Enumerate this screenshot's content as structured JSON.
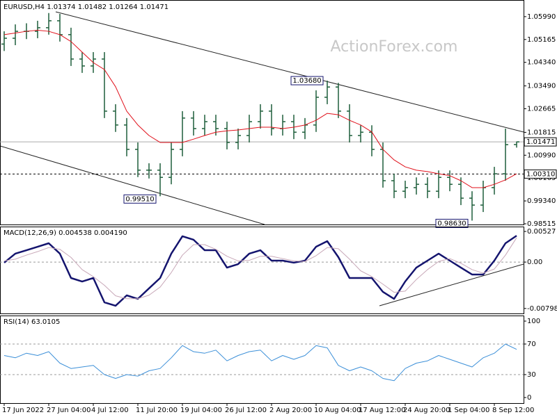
{
  "chart_data": [
    {
      "type": "ohlc",
      "title": "EURUSD,H4  1.01374 1.01482 1.01264 1.01471",
      "watermark": "ActionForex.com",
      "categories": [
        "17 Jun 2022",
        null,
        null,
        null,
        "27 Jun 04:00",
        null,
        null,
        null,
        "4 Jul 12:00",
        null,
        null,
        null,
        "11 Jul 20:00",
        null,
        null,
        null,
        "19 Jul 04:00",
        null,
        null,
        null,
        "26 Jul 12:00",
        null,
        null,
        null,
        "2 Aug 20:00",
        null,
        null,
        null,
        "10 Aug 04:00",
        null,
        null,
        null,
        "17 Aug 12:00",
        null,
        null,
        null,
        "24 Aug 20:00",
        null,
        null,
        null,
        "1 Sep 04:00",
        null,
        null,
        null,
        "8 Sep 12:00",
        null,
        null
      ],
      "open": [
        1.05,
        1.0521,
        1.0546,
        1.0546,
        1.0559,
        1.0584,
        1.0534,
        1.0446,
        1.0421,
        1.0446,
        1.0258,
        1.0208,
        1.012,
        1.0045,
        1.0045,
        1.0019,
        1.012,
        1.0233,
        1.0195,
        1.022,
        1.0195,
        1.0145,
        1.017,
        1.022,
        1.0258,
        1.0195,
        1.022,
        1.0182,
        1.0208,
        1.0308,
        1.0345,
        1.0258,
        1.017,
        1.0182,
        1.012,
        1.0007,
        0.9969,
        0.9982,
        0.9994,
        0.9969,
        1.0019,
        0.9994,
        0.9944,
        0.9919,
        0.9982,
        1.0032,
        1.01374
      ],
      "high": [
        1.0546,
        1.0571,
        1.0575,
        1.0584,
        1.0612,
        1.0609,
        1.0559,
        1.0471,
        1.0471,
        1.0471,
        1.0283,
        1.0233,
        1.0145,
        1.007,
        1.007,
        1.0145,
        1.0258,
        1.0258,
        1.0245,
        1.0245,
        1.022,
        1.0195,
        1.0245,
        1.0283,
        1.0283,
        1.0245,
        1.0245,
        1.0233,
        1.0333,
        1.0368,
        1.036,
        1.0283,
        1.0207,
        1.0207,
        1.0145,
        1.0032,
        1.0007,
        1.0019,
        1.0019,
        1.0044,
        1.0044,
        1.0019,
        0.9969,
        1.0007,
        1.0057,
        1.0195,
        1.01482
      ],
      "low": [
        1.0475,
        1.0496,
        1.0518,
        1.0521,
        1.0534,
        1.0509,
        1.0421,
        1.0396,
        1.0396,
        1.0233,
        1.0183,
        1.0095,
        1.002,
        1.0015,
        0.9951,
        0.9994,
        1.0095,
        1.017,
        1.017,
        1.017,
        1.012,
        1.012,
        1.0145,
        1.0195,
        1.017,
        1.017,
        1.0157,
        1.0157,
        1.0183,
        1.0283,
        1.0233,
        1.0145,
        1.0145,
        1.0095,
        0.9982,
        0.9944,
        0.9944,
        0.9957,
        0.9944,
        0.9944,
        0.9969,
        0.9919,
        0.9863,
        0.9894,
        0.9957,
        1.0007,
        1.01264
      ],
      "close": [
        1.0521,
        1.0546,
        1.0546,
        1.0559,
        1.0584,
        1.0534,
        1.0446,
        1.0421,
        1.0446,
        1.0258,
        1.0208,
        1.012,
        1.0045,
        1.0045,
        1.0019,
        1.012,
        1.0233,
        1.0195,
        1.022,
        1.0195,
        1.0145,
        1.017,
        1.022,
        1.0258,
        1.0195,
        1.022,
        1.0182,
        1.0208,
        1.0308,
        1.0345,
        1.0258,
        1.017,
        1.0182,
        1.012,
        1.0007,
        0.9969,
        0.9982,
        0.9994,
        0.9969,
        1.0019,
        0.9994,
        0.9944,
        0.9919,
        0.9982,
        1.0032,
        1.0137,
        1.01471
      ],
      "color": "#1d5e3a",
      "ma": {
        "color": "#e0101a",
        "values": [
          1.0534,
          1.054,
          1.0546,
          1.055,
          1.0546,
          1.0534,
          1.0509,
          1.0471,
          1.0433,
          1.0408,
          1.0346,
          1.0258,
          1.0208,
          1.017,
          1.0145,
          1.0145,
          1.0145,
          1.0157,
          1.017,
          1.0182,
          1.0187,
          1.019,
          1.0195,
          1.02,
          1.02,
          1.0195,
          1.02,
          1.0208,
          1.0225,
          1.025,
          1.0245,
          1.0225,
          1.0208,
          1.0183,
          1.012,
          1.0082,
          1.0057,
          1.0045,
          1.004,
          1.0032,
          1.0025,
          1.0007,
          0.9982,
          0.9982,
          0.9994,
          1.001,
          1.0032
        ]
      },
      "ylim": [
        0.9849,
        1.0659
      ],
      "yticks": [
        {
          "value": 1.0599,
          "label": "1.05990"
        },
        {
          "value": 1.05165,
          "label": "1.05165"
        },
        {
          "value": 1.0434,
          "label": "1.04340"
        },
        {
          "value": 1.0349,
          "label": "1.03490"
        },
        {
          "value": 1.02665,
          "label": "1.02665"
        },
        {
          "value": 1.01815,
          "label": "1.01815"
        },
        {
          "value": 1.0099,
          "label": "1.00990"
        },
        {
          "value": 1.00165,
          "label": "1.00165"
        },
        {
          "value": 0.9934,
          "label": "0.99340"
        },
        {
          "value": 0.98515,
          "label": "0.98515"
        }
      ],
      "levels": [
        {
          "value": 1.01471,
          "label": "1.01471",
          "style": "current"
        },
        {
          "value": 1.0031,
          "label": "1.00310",
          "style": "dashed"
        }
      ],
      "annotations": [
        {
          "value": 1.0368,
          "label": "1.03680"
        },
        {
          "value": 0.9951,
          "label": "0.99510"
        },
        {
          "value": 0.9863,
          "label": "0.98630"
        }
      ]
    },
    {
      "type": "line",
      "title": "MACD(12,26,9) 0.004538 0.004190",
      "series": [
        {
          "color": "#14146e",
          "width": 2.5,
          "values": [
            -0.0001,
            0.00145,
            0.00204,
            0.00264,
            0.00324,
            0.00145,
            -0.00274,
            -0.00334,
            -0.00274,
            -0.00693,
            -0.00752,
            -0.00573,
            -0.00633,
            -0.00453,
            -0.00274,
            0.00145,
            0.00444,
            0.00384,
            0.00204,
            0.00204,
            -0.00095,
            -0.00035,
            0.00145,
            0.00204,
            0.00025,
            0.00025,
            -0.0001,
            0.00025,
            0.00264,
            0.0036,
            0.00085,
            -0.00274,
            -0.00274,
            -0.00274,
            -0.00513,
            -0.00633,
            -0.00334,
            -0.00095,
            0.00025,
            0.00145,
            0.00025,
            -0.00095,
            -0.00214,
            -0.00214,
            0.00025,
            0.00324,
            0.004538
          ]
        },
        {
          "color": "#c8a8b8",
          "width": 1,
          "values": [
            0.0002,
            0.0005,
            0.0012,
            0.0018,
            0.0025,
            0.0022,
            0.0008,
            -0.0013,
            -0.0025,
            -0.004,
            -0.0058,
            -0.0063,
            -0.0063,
            -0.0057,
            -0.0043,
            -0.0018,
            0.0012,
            0.003,
            0.003,
            0.0022,
            0.001,
            0.0002,
            0.0003,
            0.001,
            0.001,
            0.0006,
            0.0002,
            0.0001,
            0.0011,
            0.0025,
            0.0023,
            0.0005,
            -0.0015,
            -0.0025,
            -0.0038,
            -0.0052,
            -0.005,
            -0.003,
            -0.0013,
            0.0001,
            0.0006,
            -0.0002,
            -0.0013,
            -0.0019,
            -0.0012,
            0.0012,
            0.00419
          ]
        }
      ],
      "ylim": [
        -0.00884,
        0.00611
      ],
      "yticks": [
        0.00527,
        {
          "value": 0,
          "label": "0.00"
        },
        -0.007984
      ],
      "levels": [
        0
      ]
    },
    {
      "type": "line",
      "title": "RSI(14) 63.0105",
      "series": [
        {
          "color": "#3b8fd8",
          "width": 1,
          "values": [
            55,
            52,
            58,
            55,
            60,
            45,
            38,
            40,
            42,
            30,
            25,
            30,
            28,
            35,
            38,
            52,
            68,
            60,
            58,
            62,
            48,
            55,
            60,
            62,
            48,
            55,
            50,
            55,
            68,
            65,
            42,
            35,
            40,
            35,
            25,
            22,
            38,
            45,
            48,
            55,
            50,
            45,
            40,
            52,
            58,
            70,
            63.0105
          ]
        }
      ],
      "ylim": [
        -7.3,
        107.3
      ],
      "yticks": [
        0,
        30,
        70,
        100
      ],
      "levels": [
        30,
        70
      ]
    }
  ]
}
